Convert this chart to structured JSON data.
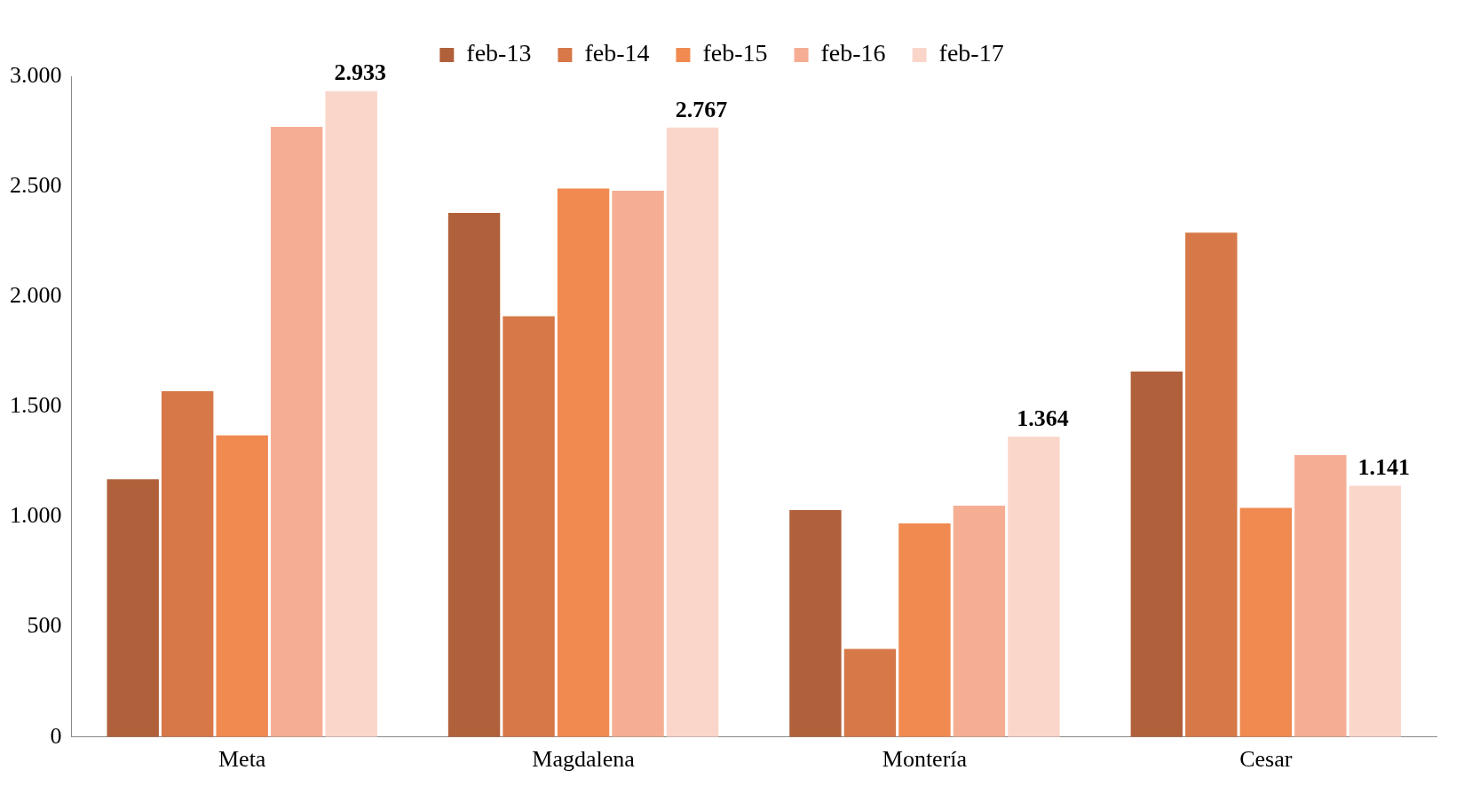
{
  "chart_data": {
    "type": "bar",
    "categories": [
      "Meta",
      "Magdalena",
      "Montería",
      "Cesar"
    ],
    "series": [
      {
        "name": "feb-13",
        "color": "#b0603a",
        "values": [
          1170,
          2380,
          1030,
          1660
        ]
      },
      {
        "name": "feb-14",
        "color": "#d67848",
        "values": [
          1570,
          1910,
          400,
          2290
        ]
      },
      {
        "name": "feb-15",
        "color": "#f08a50",
        "values": [
          1370,
          2490,
          970,
          1040
        ]
      },
      {
        "name": "feb-16",
        "color": "#f5ae94",
        "values": [
          2770,
          2480,
          1050,
          1280
        ]
      },
      {
        "name": "feb-17",
        "color": "#fad6ca",
        "values": [
          2933,
          2767,
          1364,
          1141
        ],
        "value_labels": [
          "2.933",
          "2.767",
          "1.364",
          "1.141"
        ]
      }
    ],
    "ylim": [
      0,
      3000
    ],
    "yticks": [
      0,
      {
        "value": 500,
        "label": "500"
      },
      {
        "value": 1000,
        "label": "1.000"
      },
      {
        "value": 1500,
        "label": "1.500"
      },
      {
        "value": 2000,
        "label": "2.000"
      },
      {
        "value": 2500,
        "label": "2.500"
      },
      {
        "value": 3000,
        "label": "3.000"
      }
    ],
    "grid": false,
    "legend": "top"
  }
}
